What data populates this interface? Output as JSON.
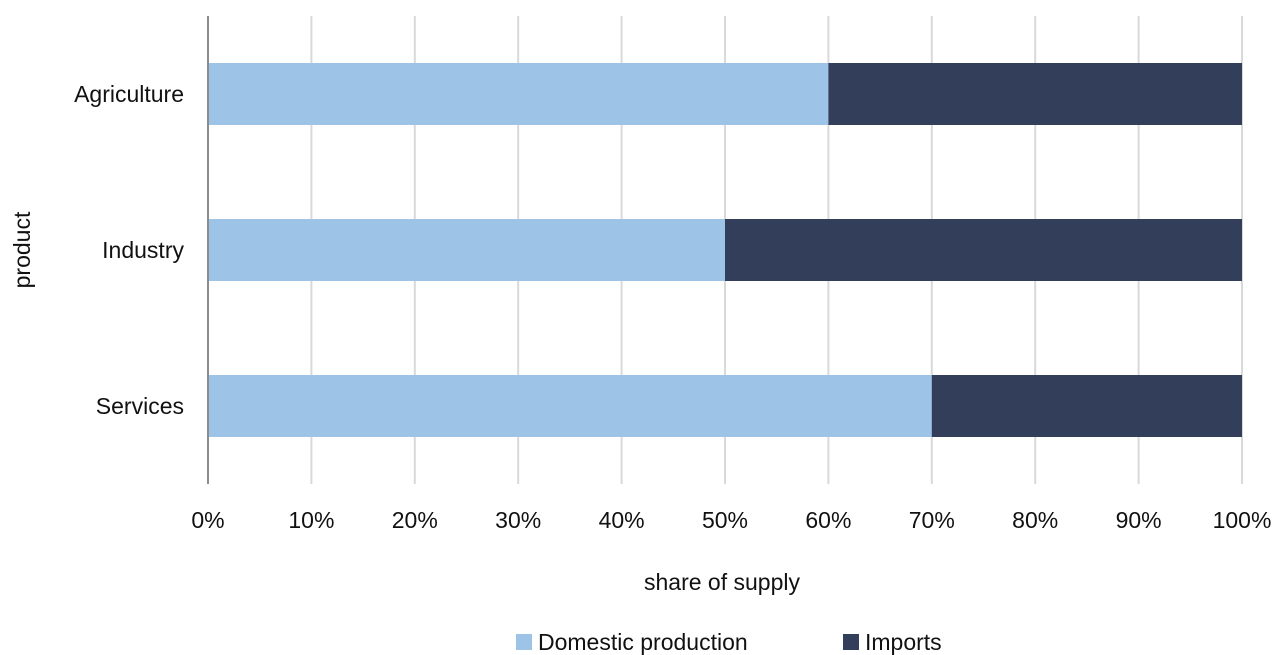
{
  "chart_data": {
    "type": "bar",
    "orientation": "horizontal",
    "stacked": "percent",
    "categories": [
      "Agriculture",
      "Industry",
      "Services"
    ],
    "series": [
      {
        "name": "Domestic production",
        "color": "#9dc3e6",
        "values": [
          60,
          50,
          70
        ]
      },
      {
        "name": "Imports",
        "color": "#323e5a",
        "values": [
          40,
          50,
          30
        ]
      }
    ],
    "xlabel": "share of supply",
    "ylabel": "product",
    "xlim": [
      0,
      100
    ],
    "xticks": [
      "0%",
      "10%",
      "20%",
      "30%",
      "40%",
      "50%",
      "60%",
      "70%",
      "80%",
      "90%",
      "100%"
    ],
    "grid": "vertical",
    "legend_position": "bottom"
  }
}
